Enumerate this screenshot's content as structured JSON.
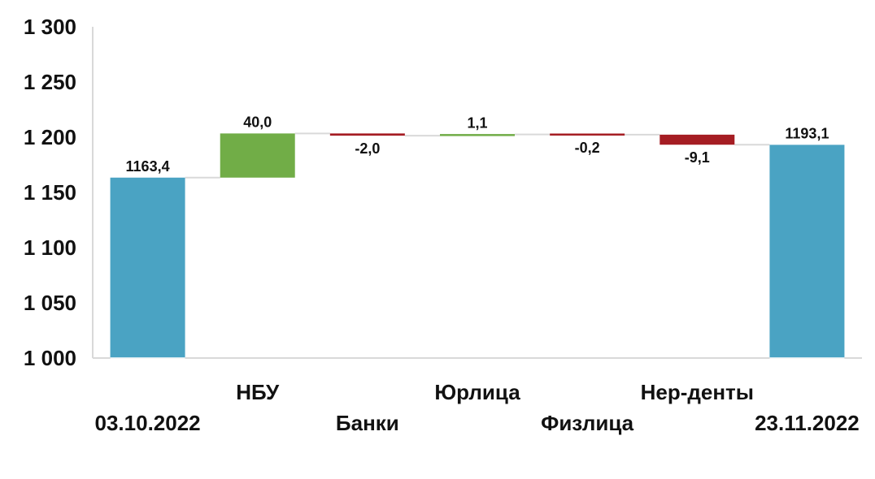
{
  "chart_data": {
    "type": "waterfall",
    "categories": [
      "03.10.2022",
      "НБУ",
      "Банки",
      "Юрлица",
      "Физлица",
      "Нер-денты",
      "23.11.2022"
    ],
    "values": [
      1163.4,
      40.0,
      -2.0,
      1.1,
      -0.2,
      -9.1,
      1193.1
    ],
    "kinds": [
      "total",
      "delta",
      "delta",
      "delta",
      "delta",
      "delta",
      "total"
    ],
    "data_labels": [
      "1163,4",
      "40,0",
      "-2,0",
      "1,1",
      "-0,2",
      "-9,1",
      "1193,1"
    ],
    "y_ticks": [
      1000,
      1050,
      1100,
      1150,
      1200,
      1250,
      1300
    ],
    "y_tick_labels": [
      "1 000",
      "1 050",
      "1 100",
      "1 150",
      "1 200",
      "1 250",
      "1 300"
    ],
    "ylim": [
      1000,
      1300
    ],
    "grid": false,
    "legend": "none",
    "colors": {
      "total": "#4aa3c3",
      "increase": "#71ad47",
      "decrease": "#a51d23",
      "connector": "#d9d9d9",
      "axis": "#d9d9d9"
    }
  }
}
